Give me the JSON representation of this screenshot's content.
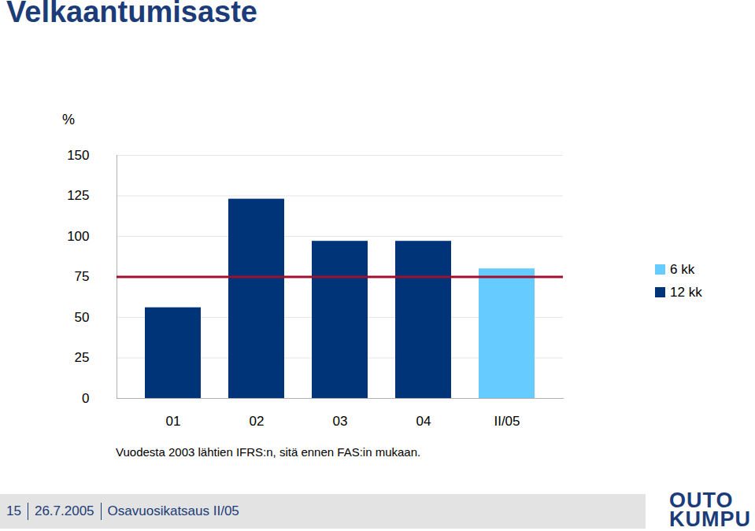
{
  "chart_data": {
    "type": "bar",
    "title": "Velkaantumisaste",
    "y_label": "%",
    "categories": [
      "01",
      "02",
      "03",
      "04",
      "II/05"
    ],
    "series": [
      {
        "name": "6 kk",
        "color": "#66ccff",
        "values": [
          null,
          null,
          null,
          null,
          80
        ]
      },
      {
        "name": "12 kk",
        "color": "#003478",
        "values": [
          56,
          123,
          97,
          97,
          null
        ]
      }
    ],
    "reference_line": {
      "value": 75,
      "color": "#a0102e"
    },
    "ylim": [
      0,
      150
    ],
    "yticks": [
      0,
      25,
      50,
      75,
      100,
      125,
      150
    ],
    "grid": true,
    "legend": "right",
    "caption": "Vuodesta 2003 lähtien IFRS:n, sitä ennen FAS:in mukaan."
  },
  "footer": {
    "page": "15",
    "date": "26.7.2005",
    "text": "Osavuosikatsaus II/05",
    "logo": [
      "OUTO",
      "KUMPU"
    ]
  }
}
